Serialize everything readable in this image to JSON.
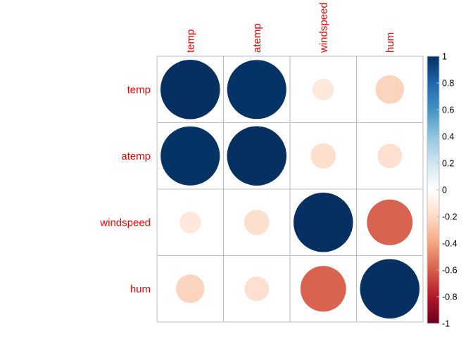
{
  "chart_data": {
    "type": "heatmap",
    "variables": [
      "temp",
      "atemp",
      "windspeed",
      "hum"
    ],
    "matrix": [
      [
        1.0,
        0.99,
        -0.13,
        -0.23
      ],
      [
        0.99,
        1.0,
        -0.18,
        -0.17
      ],
      [
        -0.13,
        -0.18,
        1.0,
        -0.59
      ],
      [
        -0.23,
        -0.17,
        -0.59,
        1.0
      ]
    ],
    "colorbar": {
      "range": [
        -1,
        1
      ],
      "tick_values": [
        1,
        0.8,
        0.6,
        0.4,
        0.2,
        0,
        -0.2,
        -0.4,
        -0.6,
        -0.8,
        -1
      ],
      "tick_labels": [
        "1",
        "0.8",
        "0.6",
        "0.4",
        "0.2",
        "0",
        "-0.2",
        "-0.4",
        "-0.6",
        "-0.8",
        "-1"
      ]
    },
    "method": "circle",
    "grid": true,
    "legend_placement": "right",
    "title": "",
    "xlabel": "",
    "ylabel": ""
  },
  "colors": {
    "label": "#ff0000",
    "grid": "#bebebe",
    "tick_text": "#000000",
    "palette": [
      "#67001f",
      "#b2182b",
      "#d6604d",
      "#f4a582",
      "#fddbc7",
      "#ffffff",
      "#d1e5f0",
      "#92c5de",
      "#4393c3",
      "#2166ac",
      "#053061"
    ]
  }
}
